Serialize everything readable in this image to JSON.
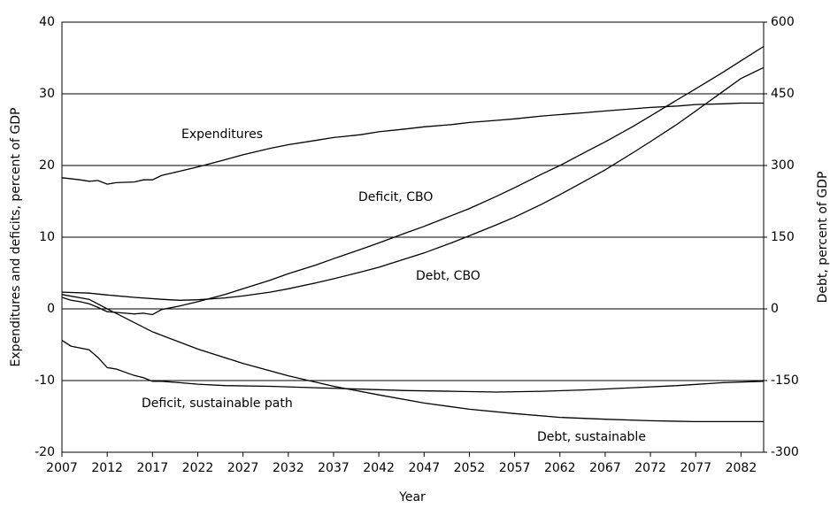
{
  "chart_data": {
    "type": "line",
    "x_label": "Year",
    "y_label": "Expenditures and deficits, percent of GDP",
    "y2_label": "Debt, percent of GDP",
    "xlim": [
      2007,
      2084.5
    ],
    "xticks": [
      2007,
      2012,
      2017,
      2022,
      2027,
      2032,
      2037,
      2042,
      2047,
      2052,
      2057,
      2062,
      2067,
      2072,
      2077,
      2082
    ],
    "ylim": [
      -20,
      40
    ],
    "yticks": [
      -20,
      -10,
      0,
      10,
      20,
      30,
      40
    ],
    "y2lim": [
      -300,
      600
    ],
    "y2ticks": [
      -300,
      -150,
      0,
      150,
      300,
      450,
      600
    ],
    "grid": true,
    "series": [
      {
        "name": "Expenditures",
        "color": "#000000",
        "axis": "y",
        "x": [
          2007,
          2009,
          2010,
          2011,
          2012,
          2013,
          2015,
          2016,
          2017,
          2018,
          2020,
          2022,
          2025,
          2027,
          2030,
          2032,
          2035,
          2037,
          2040,
          2042,
          2045,
          2047,
          2050,
          2052,
          2055,
          2057,
          2060,
          2062,
          2065,
          2067,
          2070,
          2072,
          2075,
          2077,
          2080,
          2082,
          2084.5
        ],
        "values": [
          18.3,
          18.0,
          17.8,
          17.9,
          17.4,
          17.6,
          17.7,
          18.0,
          18.0,
          18.6,
          19.2,
          19.8,
          20.8,
          21.5,
          22.4,
          22.9,
          23.5,
          23.9,
          24.3,
          24.7,
          25.1,
          25.4,
          25.7,
          26.0,
          26.3,
          26.5,
          26.9,
          27.1,
          27.4,
          27.6,
          27.9,
          28.1,
          28.3,
          28.5,
          28.6,
          28.7,
          28.7
        ]
      },
      {
        "name": "Deficit, CBO",
        "color": "#000000",
        "axis": "y",
        "x": [
          2007,
          2008,
          2009,
          2010,
          2011,
          2012,
          2013,
          2014,
          2015,
          2016,
          2017,
          2018,
          2020,
          2022,
          2025,
          2027,
          2030,
          2032,
          2035,
          2037,
          2040,
          2042,
          2045,
          2047,
          2050,
          2052,
          2055,
          2057,
          2060,
          2062,
          2065,
          2067,
          2070,
          2072,
          2075,
          2077,
          2080,
          2082,
          2084.5
        ],
        "values": [
          1.6,
          1.2,
          1.0,
          0.7,
          0.2,
          -0.4,
          -0.5,
          -0.6,
          -0.7,
          -0.6,
          -0.8,
          -0.1,
          0.4,
          1.0,
          2.0,
          2.8,
          4.0,
          4.9,
          6.1,
          7.0,
          8.3,
          9.2,
          10.6,
          11.5,
          13.0,
          14.0,
          15.7,
          16.9,
          18.8,
          20.0,
          22.0,
          23.3,
          25.4,
          26.9,
          29.2,
          30.7,
          33.0,
          34.6,
          36.6
        ]
      },
      {
        "name": "Debt, CBO",
        "color": "#000000",
        "axis": "y2",
        "x": [
          2007,
          2010,
          2012,
          2015,
          2018,
          2020,
          2022,
          2025,
          2027,
          2030,
          2032,
          2035,
          2037,
          2040,
          2042,
          2045,
          2047,
          2050,
          2052,
          2055,
          2057,
          2060,
          2062,
          2065,
          2067,
          2070,
          2072,
          2075,
          2077,
          2080,
          2082,
          2084.5
        ],
        "values": [
          35,
          33,
          29,
          24,
          20,
          18,
          19,
          23,
          27,
          35,
          42,
          54,
          63,
          77,
          87,
          105,
          117,
          138,
          153,
          176,
          192,
          219,
          239,
          270,
          291,
          326,
          350,
          387,
          414,
          455,
          482,
          505
        ]
      },
      {
        "name": "Deficit, sustainable path",
        "color": "#000000",
        "axis": "y",
        "x": [
          2007,
          2008,
          2010,
          2011,
          2012,
          2013,
          2015,
          2016,
          2017,
          2018,
          2020,
          2022,
          2025,
          2030,
          2035,
          2040,
          2045,
          2050,
          2055,
          2060,
          2065,
          2070,
          2075,
          2080,
          2084.5
        ],
        "values": [
          -4.4,
          -5.2,
          -5.7,
          -6.8,
          -8.2,
          -8.4,
          -9.3,
          -9.6,
          -10.1,
          -10.1,
          -10.3,
          -10.5,
          -10.7,
          -10.8,
          -11.0,
          -11.2,
          -11.4,
          -11.5,
          -11.6,
          -11.5,
          -11.3,
          -11.0,
          -10.7,
          -10.3,
          -10.1
        ]
      },
      {
        "name": "Debt, sustainable",
        "color": "#000000",
        "axis": "y2",
        "x": [
          2007,
          2010,
          2012,
          2017,
          2022,
          2027,
          2032,
          2037,
          2042,
          2047,
          2052,
          2057,
          2062,
          2067,
          2072,
          2077,
          2082,
          2084.5
        ],
        "values": [
          30,
          20,
          0,
          -48,
          -84,
          -114,
          -140,
          -162,
          -180,
          -197,
          -210,
          -219,
          -227,
          -231,
          -234,
          -236,
          -236,
          -236
        ]
      }
    ]
  }
}
